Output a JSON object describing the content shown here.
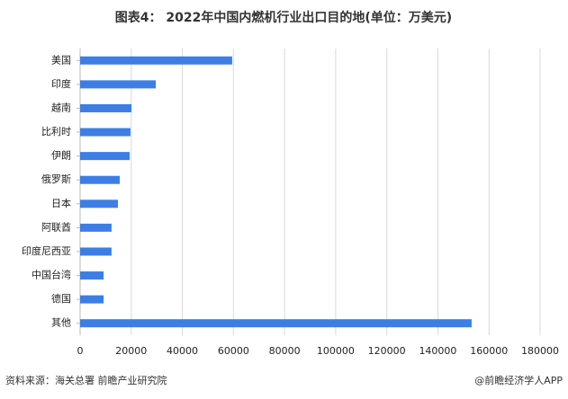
{
  "chart_data": {
    "type": "bar",
    "orientation": "horizontal",
    "title": "图表4： 2022年中国内燃机行业出口目的地(单位：万美元)",
    "source": "资料来源：海关总署 前瞻产业研究院",
    "credit": "@前瞻经济学人APP",
    "categories": [
      "美国",
      "印度",
      "越南",
      "比利时",
      "伊朗",
      "俄罗斯",
      "日本",
      "阿联酋",
      "印度尼西亚",
      "中国台湾",
      "德国",
      "其他"
    ],
    "values": [
      59500,
      29600,
      20100,
      19700,
      19400,
      15500,
      14800,
      12300,
      12300,
      9200,
      9200,
      153200
    ],
    "color": "#3d7ee6",
    "xlim": [
      0,
      180000
    ],
    "xticks": [
      0,
      20000,
      40000,
      60000,
      80000,
      100000,
      120000,
      140000,
      160000,
      180000
    ],
    "grid": true
  }
}
